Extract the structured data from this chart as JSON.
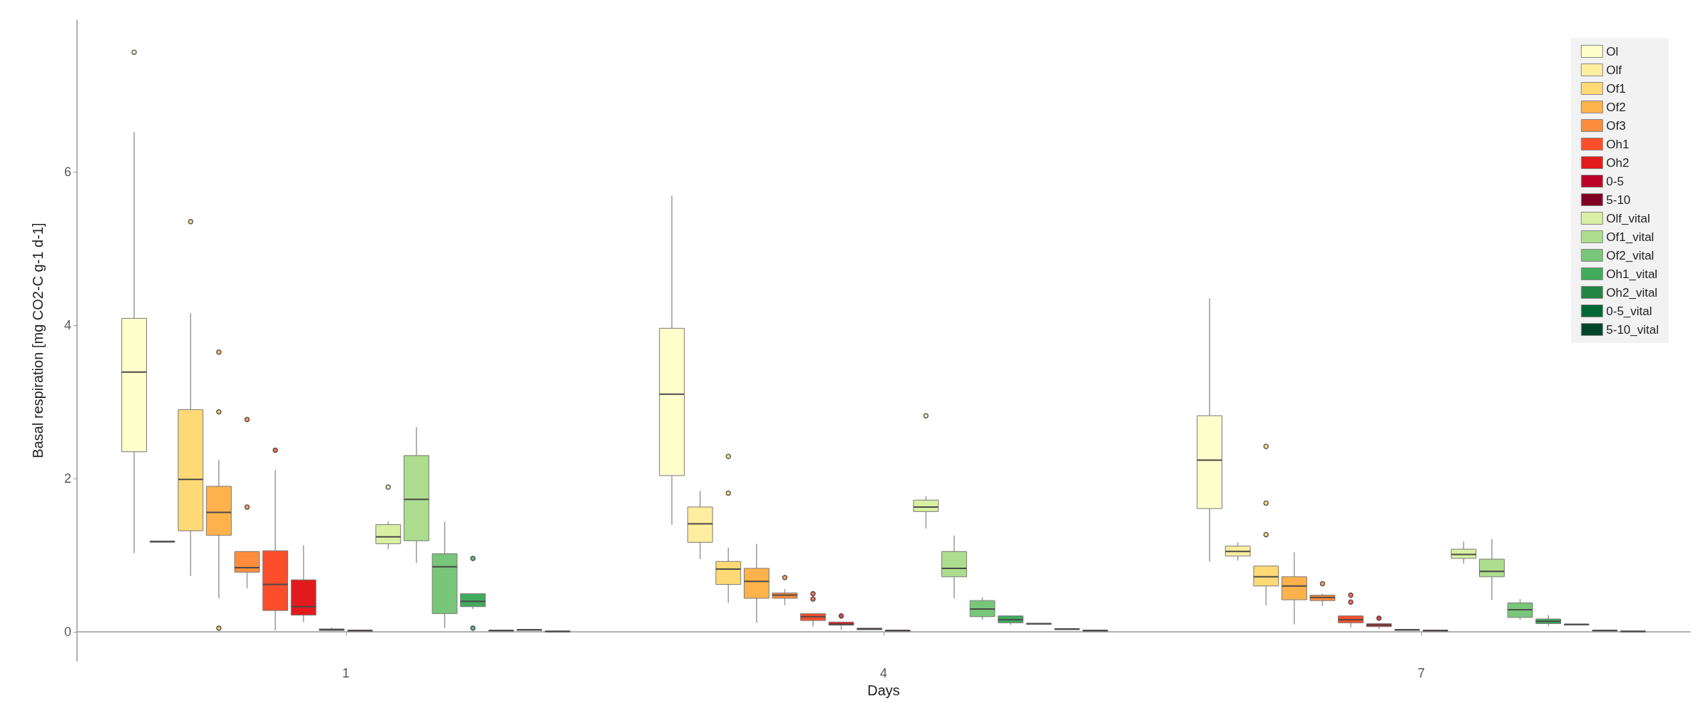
{
  "chart_data": {
    "type": "box",
    "xlabel": "Days",
    "ylabel": "Basal respiration [mg CO2-C g-1 d-1]",
    "categories": [
      "1",
      "4",
      "7"
    ],
    "ylim": [
      -0.38,
      7.98
    ],
    "yticks": [
      0,
      2,
      4,
      6
    ],
    "legend": "top right",
    "series": [
      {
        "name": "Ol",
        "color": "#ffffcc",
        "boxes": [
          {
            "low": 1.03,
            "q1": 2.35,
            "median": 3.39,
            "q3": 4.09,
            "high": 6.52,
            "outliers": [
              7.56
            ]
          },
          {
            "low": 1.4,
            "q1": 2.04,
            "median": 3.1,
            "q3": 3.96,
            "high": 5.69
          },
          {
            "low": 0.92,
            "q1": 1.61,
            "median": 2.24,
            "q3": 2.82,
            "high": 4.35
          }
        ]
      },
      {
        "name": "Olf",
        "color": "#ffeda0",
        "boxes": [
          {
            "low": 1.18,
            "q1": 1.18,
            "median": 1.18,
            "q3": 1.18,
            "high": 1.18
          },
          {
            "low": 0.95,
            "q1": 1.17,
            "median": 1.41,
            "q3": 1.63,
            "high": 1.84
          },
          {
            "low": 0.93,
            "q1": 0.99,
            "median": 1.05,
            "q3": 1.12,
            "high": 1.17
          }
        ]
      },
      {
        "name": "Of1",
        "color": "#fed976",
        "boxes": [
          {
            "low": 0.73,
            "q1": 1.32,
            "median": 1.99,
            "q3": 2.9,
            "high": 4.16,
            "outliers": [
              5.35
            ]
          },
          {
            "low": 0.38,
            "q1": 0.62,
            "median": 0.82,
            "q3": 0.92,
            "high": 1.1,
            "outliers": [
              2.29,
              1.81
            ]
          },
          {
            "low": 0.35,
            "q1": 0.6,
            "median": 0.72,
            "q3": 0.86,
            "high": 0.86,
            "outliers": [
              2.42,
              1.68,
              1.27
            ]
          }
        ]
      },
      {
        "name": "Of2",
        "color": "#feb24c",
        "boxes": [
          {
            "low": 0.44,
            "q1": 1.26,
            "median": 1.56,
            "q3": 1.9,
            "high": 2.24,
            "outliers": [
              3.65,
              2.87,
              0.05
            ]
          },
          {
            "low": 0.12,
            "q1": 0.44,
            "median": 0.66,
            "q3": 0.83,
            "high": 1.15
          },
          {
            "low": 0.1,
            "q1": 0.42,
            "median": 0.6,
            "q3": 0.72,
            "high": 1.04
          }
        ]
      },
      {
        "name": "Of3",
        "color": "#fd8d3c",
        "boxes": [
          {
            "low": 0.57,
            "q1": 0.78,
            "median": 0.84,
            "q3": 1.05,
            "high": 1.05,
            "outliers": [
              2.77,
              1.63
            ]
          },
          {
            "low": 0.35,
            "q1": 0.44,
            "median": 0.48,
            "q3": 0.51,
            "high": 0.56,
            "outliers": [
              0.71
            ]
          },
          {
            "low": 0.34,
            "q1": 0.41,
            "median": 0.45,
            "q3": 0.48,
            "high": 0.5,
            "outliers": [
              0.63
            ]
          }
        ]
      },
      {
        "name": "Oh1",
        "color": "#fc4e2a",
        "boxes": [
          {
            "low": 0.02,
            "q1": 0.28,
            "median": 0.62,
            "q3": 1.06,
            "high": 2.11,
            "outliers": [
              2.37
            ]
          },
          {
            "low": 0.07,
            "q1": 0.15,
            "median": 0.2,
            "q3": 0.24,
            "high": 0.24,
            "outliers": [
              0.5,
              0.43
            ]
          },
          {
            "low": 0.06,
            "q1": 0.12,
            "median": 0.16,
            "q3": 0.21,
            "high": 0.21,
            "outliers": [
              0.48,
              0.39
            ]
          }
        ]
      },
      {
        "name": "Oh2",
        "color": "#e31a1c",
        "boxes": [
          {
            "low": 0.13,
            "q1": 0.22,
            "median": 0.33,
            "q3": 0.68,
            "high": 1.13
          },
          {
            "low": 0.03,
            "q1": 0.09,
            "median": 0.1,
            "q3": 0.13,
            "high": 0.13,
            "outliers": [
              0.21
            ]
          },
          {
            "low": 0.04,
            "q1": 0.07,
            "median": 0.09,
            "q3": 0.11,
            "high": 0.11,
            "outliers": [
              0.18
            ]
          }
        ]
      },
      {
        "name": "0-5",
        "color": "#bd0026",
        "boxes": [
          {
            "low": 0.01,
            "q1": 0.02,
            "median": 0.03,
            "q3": 0.04,
            "high": 0.06
          },
          {
            "low": 0.02,
            "q1": 0.03,
            "median": 0.04,
            "q3": 0.05,
            "high": 0.06
          },
          {
            "low": 0.01,
            "q1": 0.02,
            "median": 0.03,
            "q3": 0.03,
            "high": 0.04
          }
        ]
      },
      {
        "name": "5-10",
        "color": "#800026",
        "boxes": [
          {
            "low": 0,
            "q1": 0.01,
            "median": 0.02,
            "q3": 0.02,
            "high": 0.03
          },
          {
            "low": 0,
            "q1": 0.01,
            "median": 0.02,
            "q3": 0.02,
            "high": 0.03
          },
          {
            "low": 0,
            "q1": 0.01,
            "median": 0.02,
            "q3": 0.02,
            "high": 0.03
          }
        ]
      },
      {
        "name": "Olf_vital",
        "color": "#d9f0a3",
        "boxes": [
          {
            "low": 1.08,
            "q1": 1.15,
            "median": 1.24,
            "q3": 1.4,
            "high": 1.44,
            "outliers": [
              1.89
            ]
          },
          {
            "low": 1.35,
            "q1": 1.57,
            "median": 1.63,
            "q3": 1.72,
            "high": 1.77,
            "outliers": [
              2.82
            ]
          },
          {
            "low": 0.89,
            "q1": 0.96,
            "median": 1.01,
            "q3": 1.08,
            "high": 1.18
          }
        ]
      },
      {
        "name": "Of1_vital",
        "color": "#addd8e",
        "boxes": [
          {
            "low": 0.9,
            "q1": 1.19,
            "median": 1.73,
            "q3": 2.3,
            "high": 2.67
          },
          {
            "low": 0.44,
            "q1": 0.72,
            "median": 0.83,
            "q3": 1.05,
            "high": 1.26
          },
          {
            "low": 0.42,
            "q1": 0.72,
            "median": 0.79,
            "q3": 0.95,
            "high": 1.21
          }
        ]
      },
      {
        "name": "Of2_vital",
        "color": "#78c679",
        "boxes": [
          {
            "low": 0.05,
            "q1": 0.24,
            "median": 0.85,
            "q3": 1.02,
            "high": 1.44
          },
          {
            "low": 0.16,
            "q1": 0.2,
            "median": 0.3,
            "q3": 0.41,
            "high": 0.45
          },
          {
            "low": 0.16,
            "q1": 0.19,
            "median": 0.29,
            "q3": 0.38,
            "high": 0.43
          }
        ]
      },
      {
        "name": "Oh1_vital",
        "color": "#41ab5d",
        "boxes": [
          {
            "low": 0.3,
            "q1": 0.33,
            "median": 0.4,
            "q3": 0.5,
            "high": 0.5,
            "outliers": [
              0.96,
              0.05
            ]
          },
          {
            "low": 0.09,
            "q1": 0.12,
            "median": 0.16,
            "q3": 0.21,
            "high": 0.21
          },
          {
            "low": 0.08,
            "q1": 0.11,
            "median": 0.14,
            "q3": 0.17,
            "high": 0.22
          }
        ]
      },
      {
        "name": "Oh2_vital",
        "color": "#238443",
        "boxes": [
          {
            "low": 0.02,
            "q1": 0.02,
            "median": 0.02,
            "q3": 0.02,
            "high": 0.02
          },
          {
            "low": 0.1,
            "q1": 0.1,
            "median": 0.11,
            "q3": 0.11,
            "high": 0.11
          },
          {
            "low": 0.1,
            "q1": 0.1,
            "median": 0.1,
            "q3": 0.1,
            "high": 0.1
          }
        ]
      },
      {
        "name": "0-5_vital",
        "color": "#006837",
        "boxes": [
          {
            "low": 0.02,
            "q1": 0.02,
            "median": 0.03,
            "q3": 0.03,
            "high": 0.04
          },
          {
            "low": 0.03,
            "q1": 0.03,
            "median": 0.04,
            "q3": 0.04,
            "high": 0.05
          },
          {
            "low": 0.01,
            "q1": 0.02,
            "median": 0.02,
            "q3": 0.02,
            "high": 0.03
          }
        ]
      },
      {
        "name": "5-10_vital",
        "color": "#004529",
        "boxes": [
          {
            "low": 0,
            "q1": 0.01,
            "median": 0.01,
            "q3": 0.01,
            "high": 0.02
          },
          {
            "low": 0,
            "q1": 0.01,
            "median": 0.02,
            "q3": 0.02,
            "high": 0.03
          },
          {
            "low": 0,
            "q1": 0.01,
            "median": 0.01,
            "q3": 0.01,
            "high": 0.02
          }
        ]
      }
    ]
  }
}
